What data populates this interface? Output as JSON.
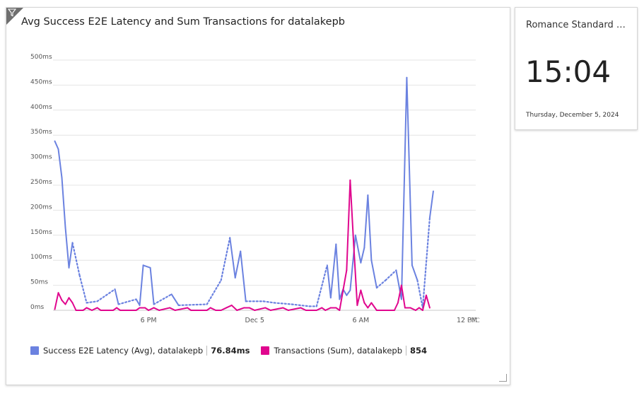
{
  "chart_tile": {
    "title": "Avg Success E2E Latency and Sum Transactions for datalakepb",
    "filter_icon": "filter-icon",
    "resize_icon": "resize-handle-icon"
  },
  "clock_tile": {
    "timezone": "Romance Standard Ti...",
    "time": "15:04",
    "date": "Thursday, December 5, 2024"
  },
  "chart_data": {
    "type": "line",
    "title": "Avg Success E2E Latency and Sum Transactions for datalakepb",
    "y_ticks": [
      "0ms",
      "50ms",
      "100ms",
      "150ms",
      "200ms",
      "250ms",
      "300ms",
      "350ms",
      "400ms",
      "450ms",
      "500ms"
    ],
    "ylim": [
      0,
      500
    ],
    "x_range_hours": [
      12.6,
      36.5
    ],
    "x_ticks": [
      {
        "label": "6 PM",
        "hour": 18
      },
      {
        "label": "Dec 5",
        "hour": 24
      },
      {
        "label": "6 AM",
        "hour": 30
      },
      {
        "label": "12 PM",
        "hour": 36
      }
    ],
    "timezone_label": "UTC",
    "grid": true,
    "legend_position": "bottom-left",
    "series": [
      {
        "name": "Success E2E Latency (Avg), datalakepb",
        "summary": "76.84ms",
        "color": "#6b82e0",
        "points": [
          [
            12.7,
            338
          ],
          [
            12.9,
            322
          ],
          [
            13.1,
            265
          ],
          [
            13.3,
            165
          ],
          [
            13.5,
            85
          ],
          [
            13.7,
            135
          ],
          [
            14.1,
            70
          ],
          [
            14.5,
            15
          ],
          [
            15.1,
            18
          ],
          [
            15.6,
            30
          ],
          [
            16.1,
            42
          ],
          [
            16.3,
            12
          ],
          [
            17.3,
            22
          ],
          [
            17.5,
            10
          ],
          [
            17.7,
            90
          ],
          [
            18.1,
            85
          ],
          [
            18.3,
            12
          ],
          [
            19.3,
            32
          ],
          [
            19.7,
            10
          ],
          [
            21.3,
            12
          ],
          [
            22.1,
            60
          ],
          [
            22.6,
            145
          ],
          [
            22.9,
            65
          ],
          [
            23.2,
            118
          ],
          [
            23.5,
            18
          ],
          [
            24.5,
            18
          ],
          [
            25.1,
            15
          ],
          [
            26.1,
            12
          ],
          [
            27.1,
            8
          ],
          [
            27.5,
            8
          ],
          [
            28.1,
            90
          ],
          [
            28.3,
            25
          ],
          [
            28.6,
            132
          ],
          [
            28.8,
            22
          ],
          [
            29.0,
            42
          ],
          [
            29.2,
            30
          ],
          [
            29.4,
            40
          ],
          [
            29.7,
            150
          ],
          [
            30.0,
            95
          ],
          [
            30.2,
            125
          ],
          [
            30.4,
            230
          ],
          [
            30.6,
            100
          ],
          [
            30.9,
            45
          ],
          [
            31.4,
            60
          ],
          [
            32.0,
            80
          ],
          [
            32.3,
            22
          ],
          [
            32.6,
            465
          ],
          [
            32.9,
            90
          ],
          [
            33.2,
            60
          ],
          [
            33.5,
            5
          ],
          [
            33.9,
            185
          ],
          [
            34.1,
            238
          ]
        ],
        "dotted_segments": [
          [
            13.7,
            14.5
          ],
          [
            14.5,
            16.1
          ],
          [
            16.3,
            17.3
          ],
          [
            18.3,
            19.3
          ],
          [
            19.7,
            22.6
          ],
          [
            23.5,
            27.5
          ],
          [
            27.5,
            28.1
          ],
          [
            30.9,
            32.0
          ],
          [
            33.2,
            33.9
          ]
        ]
      },
      {
        "name": "Transactions (Sum), datalakepb",
        "summary": "854",
        "color": "#e0068e",
        "points": [
          [
            12.7,
            2
          ],
          [
            12.9,
            35
          ],
          [
            13.1,
            20
          ],
          [
            13.3,
            12
          ],
          [
            13.5,
            25
          ],
          [
            13.7,
            15
          ],
          [
            13.9,
            0
          ],
          [
            14.3,
            0
          ],
          [
            14.5,
            5
          ],
          [
            14.8,
            0
          ],
          [
            15.1,
            5
          ],
          [
            15.3,
            0
          ],
          [
            16.0,
            0
          ],
          [
            16.2,
            5
          ],
          [
            16.4,
            0
          ],
          [
            17.3,
            0
          ],
          [
            17.5,
            5
          ],
          [
            17.8,
            5
          ],
          [
            18.0,
            0
          ],
          [
            18.3,
            5
          ],
          [
            18.6,
            0
          ],
          [
            19.2,
            5
          ],
          [
            19.5,
            0
          ],
          [
            20.2,
            5
          ],
          [
            20.4,
            0
          ],
          [
            21.3,
            0
          ],
          [
            21.5,
            5
          ],
          [
            21.8,
            0
          ],
          [
            22.1,
            0
          ],
          [
            22.4,
            5
          ],
          [
            22.7,
            10
          ],
          [
            23.0,
            0
          ],
          [
            23.4,
            5
          ],
          [
            23.7,
            5
          ],
          [
            24.0,
            0
          ],
          [
            24.6,
            5
          ],
          [
            24.9,
            0
          ],
          [
            25.6,
            5
          ],
          [
            25.9,
            0
          ],
          [
            26.6,
            5
          ],
          [
            26.9,
            0
          ],
          [
            27.5,
            0
          ],
          [
            27.8,
            5
          ],
          [
            28.0,
            0
          ],
          [
            28.3,
            5
          ],
          [
            28.6,
            5
          ],
          [
            28.8,
            0
          ],
          [
            29.0,
            40
          ],
          [
            29.2,
            80
          ],
          [
            29.4,
            260
          ],
          [
            29.6,
            130
          ],
          [
            29.8,
            10
          ],
          [
            30.0,
            40
          ],
          [
            30.2,
            15
          ],
          [
            30.4,
            5
          ],
          [
            30.6,
            15
          ],
          [
            30.9,
            0
          ],
          [
            31.5,
            0
          ],
          [
            31.9,
            0
          ],
          [
            32.1,
            15
          ],
          [
            32.3,
            50
          ],
          [
            32.5,
            5
          ],
          [
            32.8,
            5
          ],
          [
            33.1,
            0
          ],
          [
            33.3,
            5
          ],
          [
            33.5,
            0
          ],
          [
            33.7,
            30
          ],
          [
            33.9,
            5
          ]
        ]
      }
    ]
  },
  "legend": [
    {
      "label": "Success E2E Latency (Avg), datalakepb",
      "value": "76.84ms",
      "color": "#6b82e0"
    },
    {
      "label": "Transactions (Sum), datalakepb",
      "value": "854",
      "color": "#e0068e"
    }
  ]
}
